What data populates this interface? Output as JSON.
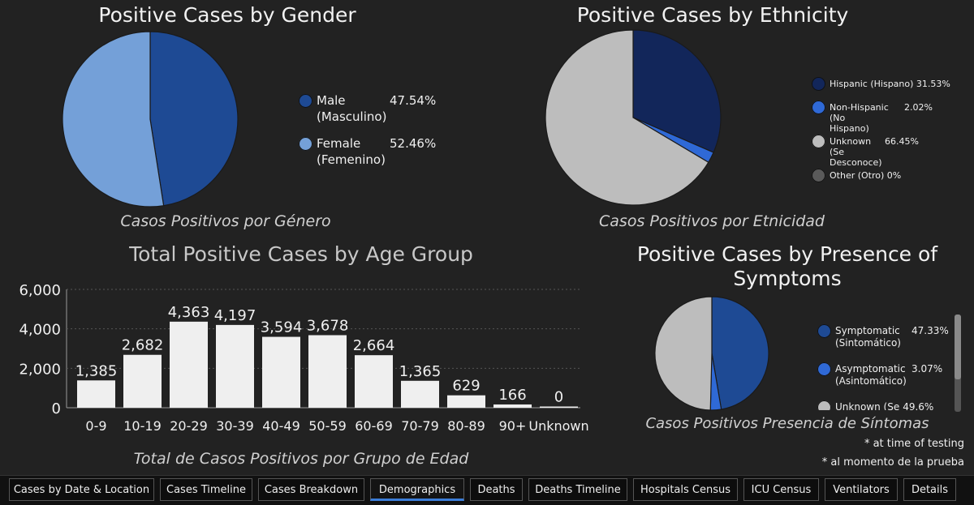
{
  "colors": {
    "male": "#1e4a94",
    "female": "#74a0d8",
    "hispanic": "#12265a",
    "non_hispanic": "#2f69d6",
    "unknown": "#bdbdbd",
    "other": "#5a5a5a",
    "symptomatic": "#1e4a94",
    "asymptomatic": "#2f69d6",
    "bar": "#efefef",
    "background": "#222222",
    "active_tab": "#3b7dd8"
  },
  "gender": {
    "title": "Positive Cases by Gender",
    "subtitle": "Casos Positivos por Género",
    "legend": [
      {
        "label1": "Male",
        "label2": "(Masculino)",
        "value": "47.54%"
      },
      {
        "label1": "Female",
        "label2": "(Femenino)",
        "value": "52.46%"
      }
    ]
  },
  "ethnicity": {
    "title": "Positive Cases by Ethnicity",
    "subtitle": "Casos Positivos por Etnicidad",
    "legend": [
      {
        "label1": "Hispanic (Hispano)",
        "label2": "",
        "value": "31.53%"
      },
      {
        "label1": "Non-Hispanic (No",
        "label2": "Hispano)",
        "value": "2.02%"
      },
      {
        "label1": "Unknown (Se",
        "label2": "Desconoce)",
        "value": "66.45%"
      },
      {
        "label1": "Other (Otro)",
        "label2": "",
        "value": "0%"
      }
    ]
  },
  "age": {
    "title": "Total Positive Cases by Age Group",
    "subtitle": "Total de Casos Positivos por Grupo de Edad",
    "tick_labels": [
      "0",
      "2,000",
      "4,000",
      "6,000"
    ],
    "bar_labels": [
      "1,385",
      "2,682",
      "4,363",
      "4,197",
      "3,594",
      "3,678",
      "2,664",
      "1,365",
      "629",
      "166",
      "0"
    ]
  },
  "symptoms": {
    "title_line1": "Positive Cases by Presence of",
    "title_line2": "Symptoms",
    "subtitle": "Casos Positivos Presencia de Síntomas",
    "legend": [
      {
        "label1": "Symptomatic",
        "label2": "(Sintomático)",
        "value": "47.33%"
      },
      {
        "label1": "Asymptomatic",
        "label2": "(Asintomático)",
        "value": "3.07%"
      },
      {
        "label1": "Unknown (Se",
        "label2": "",
        "value": "49.6%"
      }
    ]
  },
  "notes": {
    "line1": "* at time of testing",
    "line2": "* al momento de la prueba"
  },
  "tabs": [
    {
      "label": "Cases by Date & Location",
      "active": false
    },
    {
      "label": "Cases Timeline",
      "active": false
    },
    {
      "label": "Cases Breakdown",
      "active": false
    },
    {
      "label": "Demographics",
      "active": true
    },
    {
      "label": "Deaths",
      "active": false
    },
    {
      "label": "Deaths Timeline",
      "active": false
    },
    {
      "label": "Hospitals Census",
      "active": false
    },
    {
      "label": "ICU Census",
      "active": false
    },
    {
      "label": "Ventilators",
      "active": false
    },
    {
      "label": "Details",
      "active": false
    }
  ],
  "chart_data": [
    {
      "type": "pie",
      "title": "Positive Cases by Gender",
      "subtitle": "Casos Positivos por Género",
      "labels": [
        "Male (Masculino)",
        "Female (Femenino)"
      ],
      "values": [
        47.54,
        52.46
      ],
      "legend_position": "right"
    },
    {
      "type": "pie",
      "title": "Positive Cases by Ethnicity",
      "subtitle": "Casos Positivos por Etnicidad",
      "labels": [
        "Hispanic (Hispano)",
        "Non-Hispanic (No Hispano)",
        "Unknown (Se Desconoce)",
        "Other (Otro)"
      ],
      "values": [
        31.53,
        2.02,
        66.45,
        0
      ],
      "legend_position": "right"
    },
    {
      "type": "bar",
      "title": "Total Positive Cases by Age Group",
      "subtitle": "Total de Casos Positivos por Grupo de Edad",
      "categories": [
        "0-9",
        "10-19",
        "20-29",
        "30-39",
        "40-49",
        "50-59",
        "60-69",
        "70-79",
        "80-89",
        "90+",
        "Unknown"
      ],
      "values": [
        1385,
        2682,
        4363,
        4197,
        3594,
        3678,
        2664,
        1365,
        629,
        166,
        0
      ],
      "ylim": [
        0,
        6000
      ],
      "yticks": [
        0,
        2000,
        4000,
        6000
      ],
      "grid": true
    },
    {
      "type": "pie",
      "title": "Positive Cases by Presence of Symptoms",
      "subtitle": "Casos Positivos Presencia de Síntomas",
      "labels": [
        "Symptomatic (Sintomático)",
        "Asymptomatic (Asintomático)",
        "Unknown (Se"
      ],
      "values": [
        47.33,
        3.07,
        49.6
      ],
      "legend_position": "right"
    }
  ]
}
